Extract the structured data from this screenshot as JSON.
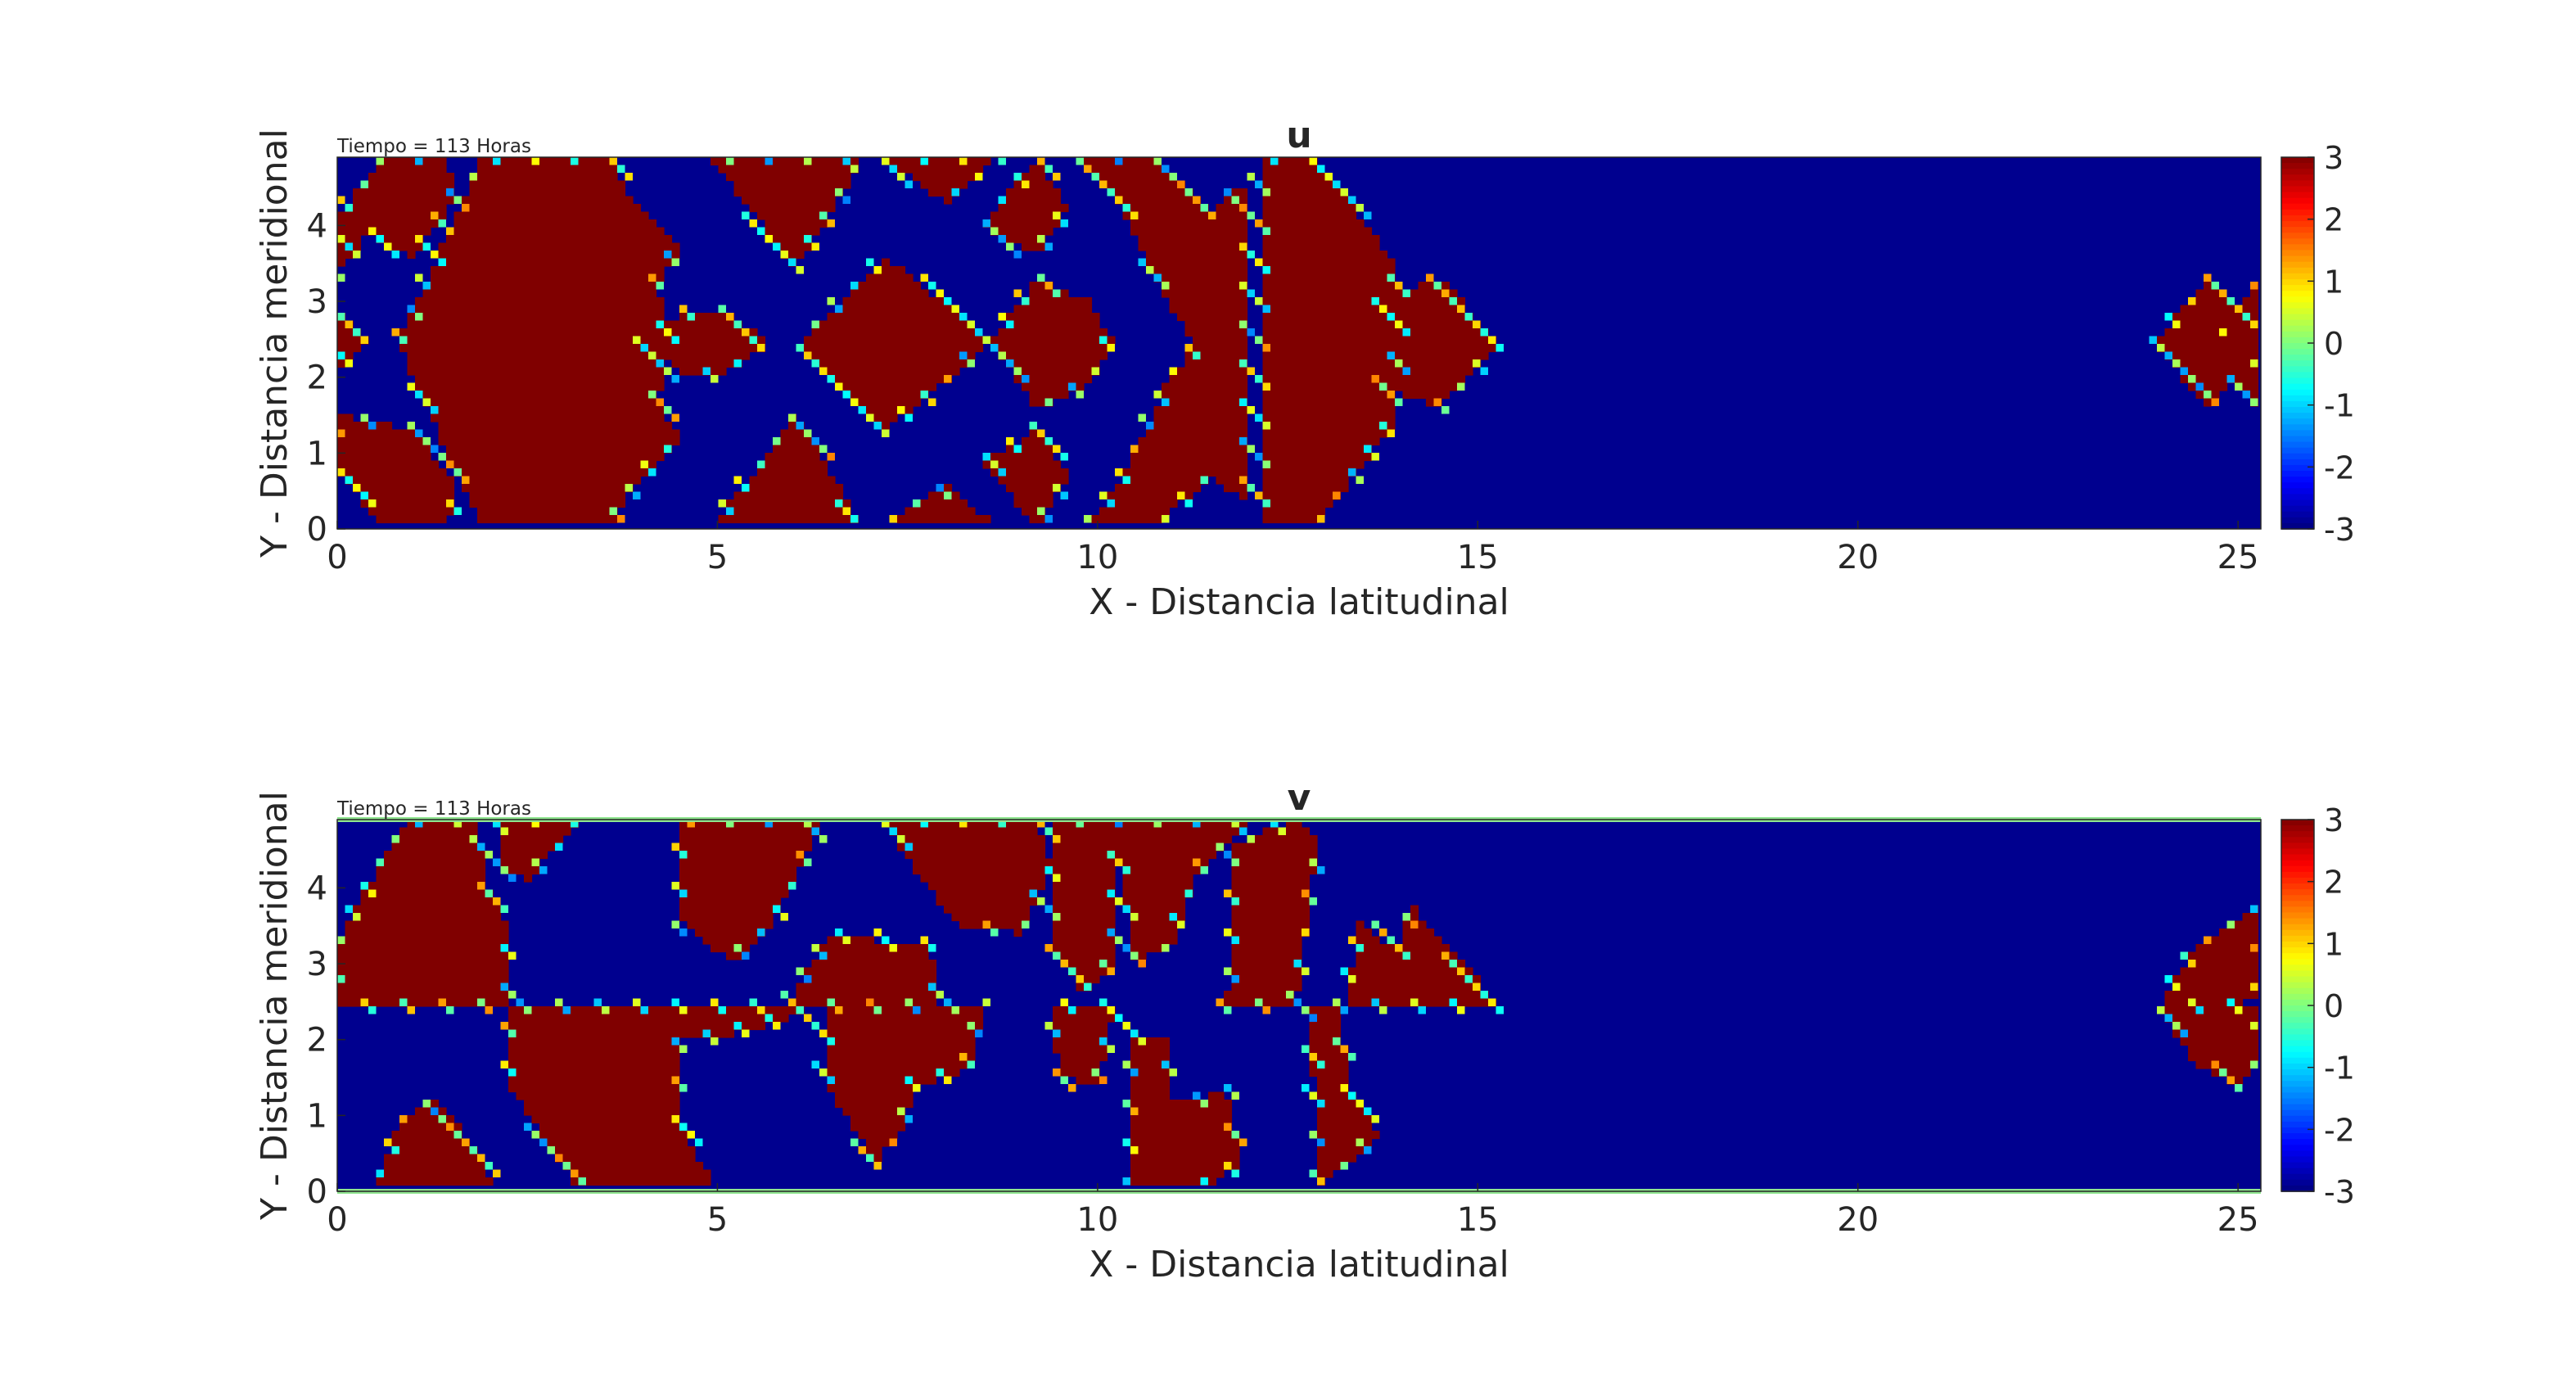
{
  "figure": {
    "background": "#ffffff",
    "colormap": "jet",
    "high_color": "#800000",
    "low_color": "#00008f"
  },
  "chart_data": [
    {
      "type": "heatmap",
      "id": "u",
      "title": "u",
      "annotation": "Tiempo = 113 Horas",
      "xlabel": "X - Distancia latitudinal",
      "ylabel": "Y - Distancia meridional",
      "xlim": [
        0,
        25.3
      ],
      "ylim": [
        0,
        4.9
      ],
      "xticks": [
        0,
        5,
        10,
        15,
        20,
        25
      ],
      "yticks": [
        0,
        1,
        2,
        3,
        4
      ],
      "clim": [
        -3,
        3
      ],
      "colorbar_ticks": [
        3,
        2,
        1,
        0,
        -1,
        -2,
        -3
      ],
      "boundary_lines": false,
      "symmetric_about_y": 2.45,
      "saturated_positive_regions": [
        [
          [
            0,
            4.1
          ],
          [
            0.6,
            4.9
          ],
          [
            1.4,
            4.9
          ],
          [
            1.6,
            4.4
          ],
          [
            1.0,
            3.6
          ],
          [
            0.4,
            3.9
          ],
          [
            0,
            3.4
          ]
        ],
        [
          [
            0,
            2.9
          ],
          [
            0.4,
            2.5
          ],
          [
            0,
            2.1
          ]
        ],
        [
          [
            0.8,
            2.45
          ],
          [
            1.9,
            4.9
          ],
          [
            3.6,
            4.9
          ],
          [
            3.9,
            4.3
          ],
          [
            4.5,
            3.7
          ],
          [
            4.2,
            3.2
          ],
          [
            4.4,
            2.45
          ],
          [
            4.2,
            1.7
          ],
          [
            4.5,
            1.2
          ],
          [
            3.9,
            0.6
          ],
          [
            3.6,
            0
          ],
          [
            1.9,
            0
          ]
        ],
        [
          [
            0,
            1.5
          ],
          [
            1.0,
            1.3
          ],
          [
            1.6,
            0.5
          ],
          [
            1.4,
            0
          ],
          [
            0.6,
            0
          ],
          [
            0,
            0.8
          ]
        ],
        [
          [
            4.0,
            2.45
          ],
          [
            4.6,
            2.9
          ],
          [
            5.2,
            2.8
          ],
          [
            5.7,
            2.45
          ],
          [
            5.2,
            2.1
          ],
          [
            4.6,
            2.0
          ]
        ],
        [
          [
            4.9,
            4.9
          ],
          [
            5.6,
            4.0
          ],
          [
            6.0,
            3.4
          ],
          [
            6.4,
            4.0
          ],
          [
            6.9,
            4.9
          ]
        ],
        [
          [
            4.9,
            0
          ],
          [
            5.6,
            0.9
          ],
          [
            6.0,
            1.5
          ],
          [
            6.4,
            0.9
          ],
          [
            6.9,
            0
          ]
        ],
        [
          [
            6.1,
            2.45
          ],
          [
            7.2,
            3.6
          ],
          [
            8.2,
            2.8
          ],
          [
            8.5,
            2.45
          ],
          [
            8.2,
            2.1
          ],
          [
            7.2,
            1.3
          ]
        ],
        [
          [
            7.2,
            4.9
          ],
          [
            8.0,
            4.3
          ],
          [
            8.7,
            4.9
          ]
        ],
        [
          [
            7.2,
            0
          ],
          [
            8.0,
            0.6
          ],
          [
            8.7,
            0
          ]
        ],
        [
          [
            8.5,
            4.0
          ],
          [
            9.2,
            4.9
          ],
          [
            9.6,
            4.2
          ],
          [
            9.2,
            3.6
          ]
        ],
        [
          [
            8.5,
            0.9
          ],
          [
            9.2,
            0
          ],
          [
            9.6,
            0.7
          ],
          [
            9.2,
            1.3
          ]
        ],
        [
          [
            8.6,
            2.45
          ],
          [
            9.2,
            3.3
          ],
          [
            9.9,
            3.0
          ],
          [
            10.2,
            2.45
          ],
          [
            9.9,
            1.9
          ],
          [
            9.2,
            1.6
          ]
        ],
        [
          [
            9.8,
            4.9
          ],
          [
            10.7,
            4.9
          ],
          [
            11.5,
            4.2
          ],
          [
            12.0,
            4.6
          ],
          [
            12.0,
            0.3
          ],
          [
            11.5,
            0.7
          ],
          [
            10.7,
            0
          ],
          [
            9.8,
            0
          ],
          [
            10.3,
            0.6
          ],
          [
            10.9,
            1.9
          ],
          [
            11.3,
            2.45
          ],
          [
            10.9,
            3.0
          ],
          [
            10.3,
            4.3
          ]
        ],
        [
          [
            12.2,
            4.9
          ],
          [
            12.8,
            4.9
          ],
          [
            13.3,
            4.3
          ],
          [
            13.9,
            3.5
          ],
          [
            14.0,
            2.45
          ],
          [
            13.9,
            1.4
          ],
          [
            13.3,
            0.6
          ],
          [
            12.8,
            0
          ],
          [
            12.2,
            0
          ]
        ],
        [
          [
            13.6,
            3.0
          ],
          [
            14.5,
            3.3
          ],
          [
            15.3,
            2.45
          ],
          [
            14.5,
            1.6
          ],
          [
            13.6,
            1.9
          ],
          [
            14.0,
            2.45
          ]
        ],
        [
          [
            24.7,
            2.45
          ],
          [
            25.3,
            3.4
          ],
          [
            25.3,
            1.5
          ]
        ],
        [
          [
            23.9,
            2.45
          ],
          [
            24.6,
            3.3
          ],
          [
            25.3,
            2.6
          ],
          [
            25.3,
            2.3
          ],
          [
            24.6,
            1.6
          ]
        ]
      ]
    },
    {
      "type": "heatmap",
      "id": "v",
      "title": "v",
      "annotation": "Tiempo = 113 Horas",
      "xlabel": "X - Distancia latitudinal",
      "ylabel": "Y - Distancia meridional",
      "xlim": [
        0,
        25.3
      ],
      "ylim": [
        0,
        4.9
      ],
      "xticks": [
        0,
        5,
        10,
        15,
        20,
        25
      ],
      "yticks": [
        0,
        1,
        2,
        3,
        4
      ],
      "clim": [
        -3,
        3
      ],
      "colorbar_ticks": [
        3,
        2,
        1,
        0,
        -1,
        -2,
        -3
      ],
      "boundary_lines": true,
      "antisymmetric_about_y": 2.45,
      "saturated_positive_regions": [
        [
          [
            0,
            2.45
          ],
          [
            0,
            3.3
          ],
          [
            0.9,
            4.9
          ],
          [
            1.8,
            4.9
          ],
          [
            2.0,
            4.0
          ],
          [
            2.3,
            3.3
          ],
          [
            2.2,
            2.45
          ]
        ],
        [
          [
            2.1,
            4.9
          ],
          [
            3.2,
            4.9
          ],
          [
            2.5,
            4.1
          ],
          [
            2.2,
            4.3
          ]
        ],
        [
          [
            4.5,
            4.9
          ],
          [
            6.4,
            4.9
          ],
          [
            6.0,
            4.1
          ],
          [
            5.7,
            3.5
          ],
          [
            5.2,
            3.0
          ],
          [
            4.5,
            3.6
          ]
        ],
        [
          [
            5.9,
            2.45
          ],
          [
            6.5,
            3.4
          ],
          [
            7.8,
            3.2
          ],
          [
            7.9,
            2.45
          ]
        ],
        [
          [
            7.2,
            4.9
          ],
          [
            9.2,
            4.9
          ],
          [
            9.4,
            4.3
          ],
          [
            9.0,
            3.4
          ],
          [
            8.2,
            3.5
          ],
          [
            7.6,
            4.2
          ]
        ],
        [
          [
            9.4,
            4.9
          ],
          [
            10.2,
            4.9
          ],
          [
            10.2,
            3.0
          ],
          [
            9.8,
            2.6
          ],
          [
            9.4,
            3.3
          ]
        ],
        [
          [
            10.2,
            4.9
          ],
          [
            12.0,
            4.9
          ],
          [
            11.3,
            4.2
          ],
          [
            11.0,
            3.3
          ],
          [
            10.5,
            3.0
          ]
        ],
        [
          [
            11.7,
            2.45
          ],
          [
            11.8,
            4.6
          ],
          [
            12.6,
            4.9
          ],
          [
            12.9,
            4.6
          ],
          [
            12.6,
            2.45
          ]
        ],
        [
          [
            13.3,
            2.45
          ],
          [
            13.4,
            3.6
          ],
          [
            14.0,
            3.1
          ],
          [
            14.1,
            3.8
          ],
          [
            15.3,
            2.45
          ]
        ],
        [
          [
            24.0,
            2.45
          ],
          [
            25.3,
            2.5
          ],
          [
            25.3,
            3.8
          ],
          [
            24.4,
            3.2
          ]
        ],
        [
          [
            0.5,
            0
          ],
          [
            0.8,
            0.9
          ],
          [
            1.3,
            1.2
          ],
          [
            1.8,
            0.6
          ],
          [
            2.1,
            0
          ]
        ],
        [
          [
            2.3,
            2.4
          ],
          [
            2.2,
            1.5
          ],
          [
            2.6,
            0.9
          ],
          [
            3.2,
            0
          ],
          [
            5.0,
            0
          ],
          [
            4.5,
            0.9
          ],
          [
            4.5,
            2.0
          ],
          [
            5.4,
            2.1
          ],
          [
            6.2,
            2.4
          ]
        ],
        [
          [
            6.4,
            2.4
          ],
          [
            6.4,
            1.4
          ],
          [
            7.1,
            0.4
          ],
          [
            7.4,
            0.8
          ],
          [
            7.6,
            1.4
          ],
          [
            8.3,
            1.6
          ],
          [
            8.5,
            2.4
          ]
        ],
        [
          [
            9.4,
            2.4
          ],
          [
            9.5,
            1.5
          ],
          [
            10.0,
            1.4
          ],
          [
            10.2,
            2.4
          ]
        ],
        [
          [
            10.4,
            0
          ],
          [
            11.4,
            0
          ],
          [
            11.9,
            0.4
          ],
          [
            11.7,
            1.3
          ],
          [
            11.0,
            1.2
          ],
          [
            10.9,
            2.0
          ],
          [
            10.4,
            2.1
          ]
        ],
        [
          [
            12.9,
            0
          ],
          [
            12.8,
            2.4
          ],
          [
            13.2,
            2.4
          ],
          [
            13.3,
            1.4
          ],
          [
            13.7,
            0.7
          ],
          [
            13.3,
            0.4
          ]
        ],
        [
          [
            24.4,
            1.7
          ],
          [
            25.0,
            1.4
          ],
          [
            25.3,
            1.8
          ],
          [
            25.3,
            2.4
          ],
          [
            24.0,
            2.4
          ]
        ]
      ]
    }
  ]
}
